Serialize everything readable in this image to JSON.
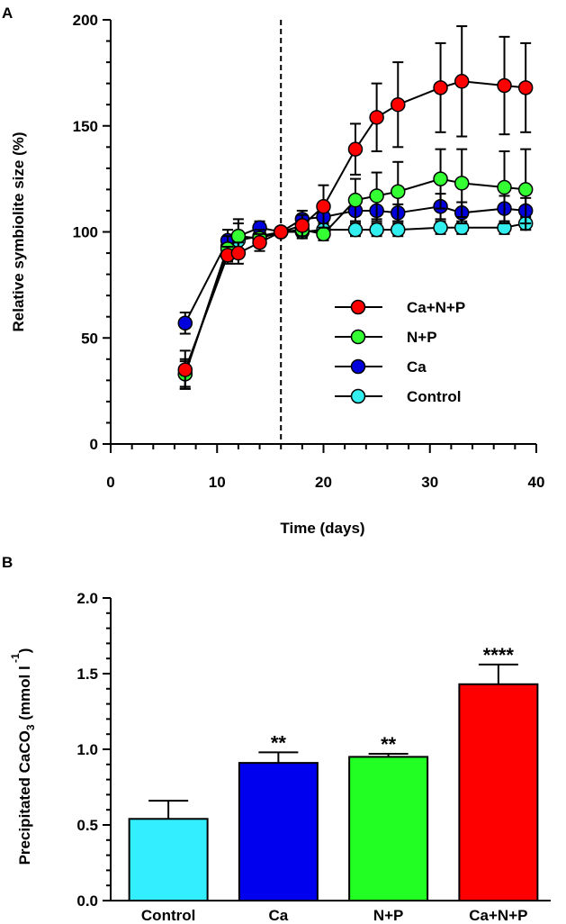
{
  "chart_data": [
    {
      "panel": "A",
      "type": "line",
      "xlabel": "Time (days)",
      "ylabel": "Relative symbiolite size (%)",
      "xlim": [
        0,
        40
      ],
      "ylim": [
        0,
        200
      ],
      "xticks": [
        0,
        10,
        20,
        30,
        40
      ],
      "yticks": [
        0,
        50,
        100,
        150,
        200
      ],
      "vline_x": 16,
      "legend_position": "right-middle",
      "series": [
        {
          "name": "Ca+N+P",
          "color": "#ff0000",
          "x": [
            7,
            11,
            12,
            14,
            16,
            18,
            20,
            23,
            25,
            27,
            31,
            33,
            37,
            39
          ],
          "y": [
            35,
            89,
            90,
            95,
            100,
            103,
            112,
            139,
            154,
            160,
            168,
            171,
            169,
            168
          ],
          "err": [
            9,
            4,
            5,
            4,
            0,
            5,
            10,
            12,
            16,
            20,
            21,
            26,
            23,
            21
          ]
        },
        {
          "name": "N+P",
          "color": "#33ff33",
          "x": [
            7,
            11,
            12,
            14,
            16,
            18,
            20,
            23,
            25,
            27,
            31,
            33,
            37,
            39
          ],
          "y": [
            33,
            92,
            98,
            97,
            100,
            101,
            99,
            115,
            117,
            119,
            125,
            123,
            121,
            120
          ],
          "err": [
            7,
            6,
            8,
            4,
            0,
            4,
            3,
            10,
            11,
            14,
            14,
            16,
            17,
            19
          ]
        },
        {
          "name": "Ca",
          "color": "#0000dd",
          "x": [
            7,
            11,
            12,
            14,
            16,
            18,
            20,
            23,
            25,
            27,
            31,
            33,
            37,
            39
          ],
          "y": [
            57,
            96,
            98,
            102,
            100,
            106,
            107,
            110,
            110,
            109,
            112,
            109,
            111,
            110
          ],
          "err": [
            5,
            5,
            6,
            3,
            0,
            4,
            6,
            5,
            5,
            4,
            6,
            5,
            6,
            6
          ]
        },
        {
          "name": "Control",
          "color": "#33eeee",
          "x": [
            7,
            11,
            12,
            14,
            16,
            18,
            20,
            23,
            25,
            27,
            31,
            33,
            37,
            39
          ],
          "y": [
            33,
            93,
            96,
            98,
            100,
            100,
            101,
            101,
            101,
            101,
            102,
            102,
            102,
            104
          ],
          "err": [
            6,
            4,
            4,
            3,
            0,
            3,
            3,
            3,
            3,
            3,
            3,
            3,
            3,
            3
          ]
        }
      ]
    },
    {
      "panel": "B",
      "type": "bar",
      "ylabel_main": "Precipitated CaCO",
      "ylabel_sub": "3",
      "ylabel_unit": " (mmol  l",
      "ylabel_sup": " -1",
      "ylabel_close": ")",
      "ylim": [
        0,
        2.0
      ],
      "yticks": [
        "0.0",
        "0.5",
        "1.0",
        "1.5",
        "2.0"
      ],
      "categories": [
        "Control",
        "Ca",
        "N+P",
        "Ca+N+P"
      ],
      "values": [
        0.54,
        0.91,
        0.95,
        1.43
      ],
      "errors": [
        0.12,
        0.07,
        0.02,
        0.13
      ],
      "colors": [
        "#33eeff",
        "#0000ee",
        "#22ff22",
        "#ff0000"
      ],
      "significance": [
        "",
        "**",
        "**",
        "****"
      ]
    }
  ]
}
